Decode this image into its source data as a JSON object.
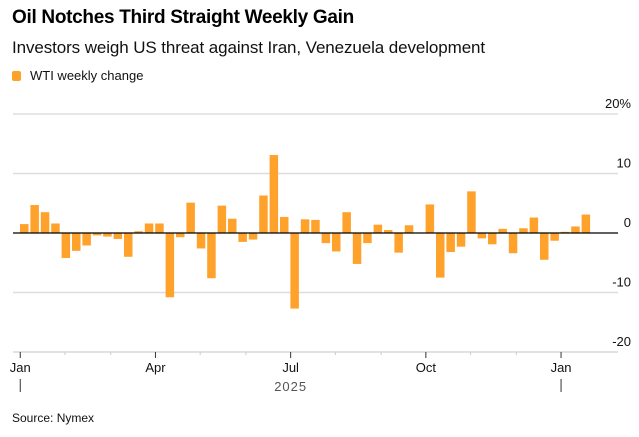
{
  "header": {
    "title": "Oil Notches Third Straight Weekly Gain",
    "subtitle": "Investors weigh US threat against Iran, Venezuela development"
  },
  "legend": {
    "label": "WTI weekly change",
    "color": "#FFA22C"
  },
  "footer": {
    "source": "Source: Nymex"
  },
  "chart_data": {
    "type": "bar",
    "title": "Oil Notches Third Straight Weekly Gain",
    "subtitle": "Investors weigh US threat against Iran, Venezuela development",
    "xlabel": "2025",
    "ylabel": "",
    "ylim": [
      -20,
      20
    ],
    "y_unit": "%",
    "y_ticks": [
      {
        "value": 20,
        "label": "20%"
      },
      {
        "value": 10,
        "label": "10"
      },
      {
        "value": 0,
        "label": "0"
      },
      {
        "value": -10,
        "label": "-10"
      },
      {
        "value": -20,
        "label": "-20"
      }
    ],
    "x_ticks": [
      {
        "week": 0,
        "label": "Jan",
        "major": true
      },
      {
        "week": 13,
        "label": "Apr",
        "major": false
      },
      {
        "week": 26,
        "label": "Jul",
        "major": false
      },
      {
        "week": 39,
        "label": "Oct",
        "major": false
      },
      {
        "week": 52,
        "label": "Jan",
        "major": true
      }
    ],
    "minor_tick_weeks": [
      4.3,
      8.7,
      17.3,
      21.7,
      30.3,
      34.7,
      43.3,
      47.7
    ],
    "year_label": "2025",
    "grid": true,
    "legend_position": "top-left",
    "series": [
      {
        "name": "WTI weekly change",
        "color": "#FFA22C",
        "values": [
          1.5,
          4.7,
          3.5,
          1.6,
          -4.2,
          -3.0,
          -2.1,
          -0.4,
          -0.6,
          -1.0,
          -4.0,
          0.3,
          1.6,
          1.6,
          -10.8,
          -0.7,
          5.1,
          -2.6,
          -7.6,
          4.6,
          2.4,
          -1.5,
          -1.1,
          6.3,
          13.1,
          2.7,
          -12.7,
          2.3,
          2.2,
          -1.7,
          -3.1,
          3.5,
          -5.2,
          -1.7,
          1.4,
          0.5,
          -3.3,
          1.3,
          0.0,
          4.8,
          -7.5,
          -3.2,
          -2.3,
          7.0,
          -0.9,
          -1.9,
          0.7,
          -3.4,
          0.8,
          2.6,
          -4.5,
          -1.3,
          0.2,
          1.1,
          3.1
        ]
      }
    ]
  }
}
